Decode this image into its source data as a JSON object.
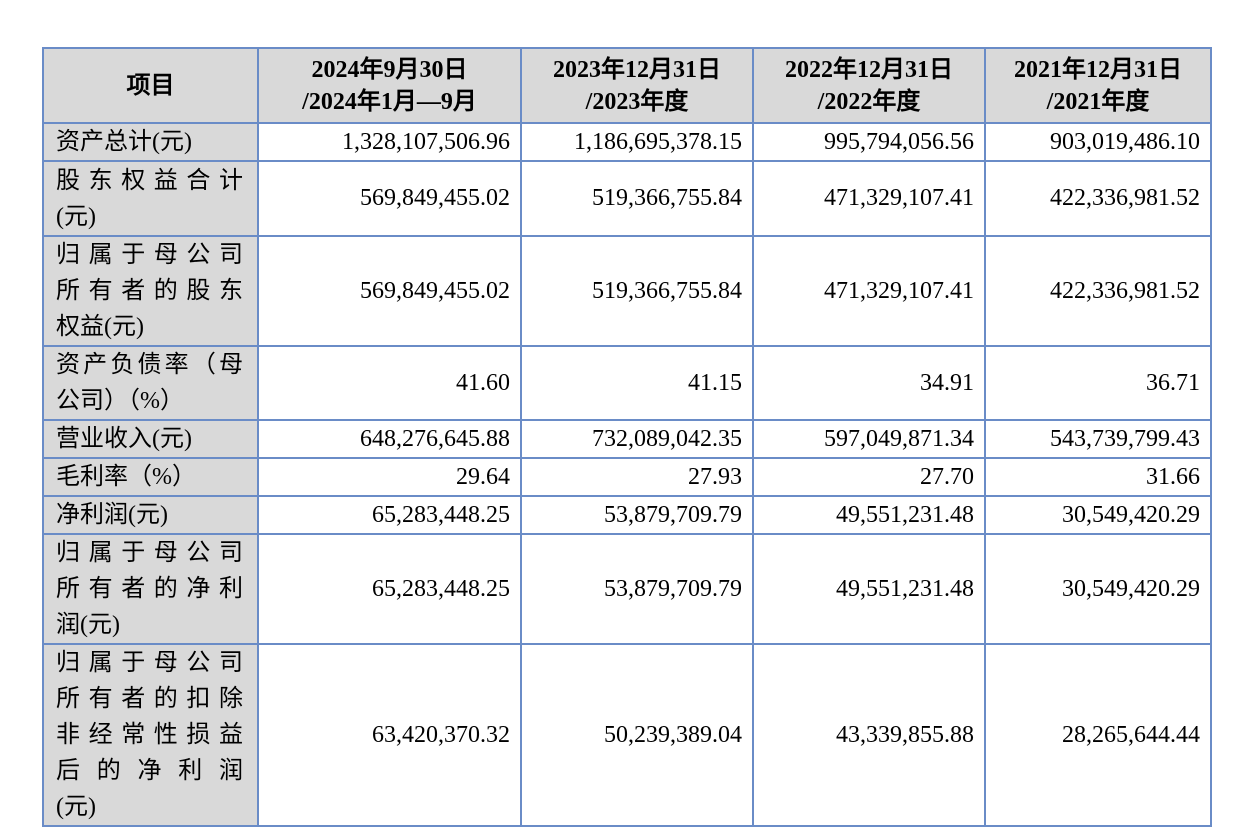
{
  "header": {
    "item": "项目",
    "columns": [
      [
        "2024年9月30日",
        "/2024年1月—9月"
      ],
      [
        "2023年12月31日",
        "/2023年度"
      ],
      [
        "2022年12月31日",
        "/2022年度"
      ],
      [
        "2021年12月31日",
        "/2021年度"
      ]
    ]
  },
  "rows": [
    {
      "label": [
        "资产总计(元)"
      ],
      "values": [
        "1,328,107,506.96",
        "1,186,695,378.15",
        "995,794,056.56",
        "903,019,486.10"
      ]
    },
    {
      "label": [
        "股东权益合计",
        "(元)"
      ],
      "values": [
        "569,849,455.02",
        "519,366,755.84",
        "471,329,107.41",
        "422,336,981.52"
      ]
    },
    {
      "label": [
        "归属于母公司",
        "所有者的股东",
        "权益(元)"
      ],
      "values": [
        "569,849,455.02",
        "519,366,755.84",
        "471,329,107.41",
        "422,336,981.52"
      ]
    },
    {
      "label": [
        "资产负债率（母",
        "公司）（%）"
      ],
      "values": [
        "41.60",
        "41.15",
        "34.91",
        "36.71"
      ]
    },
    {
      "label": [
        "营业收入(元)"
      ],
      "values": [
        "648,276,645.88",
        "732,089,042.35",
        "597,049,871.34",
        "543,739,799.43"
      ]
    },
    {
      "label": [
        "毛利率（%）"
      ],
      "values": [
        "29.64",
        "27.93",
        "27.70",
        "31.66"
      ]
    },
    {
      "label": [
        "净利润(元)"
      ],
      "values": [
        "65,283,448.25",
        "53,879,709.79",
        "49,551,231.48",
        "30,549,420.29"
      ]
    },
    {
      "label": [
        "归属于母公司",
        "所有者的净利",
        "润(元)"
      ],
      "values": [
        "65,283,448.25",
        "53,879,709.79",
        "49,551,231.48",
        "30,549,420.29"
      ]
    },
    {
      "label": [
        "归属于母公司",
        "所有者的扣除",
        "非经常性损益",
        "后的净利润",
        "(元)"
      ],
      "values": [
        "63,420,370.32",
        "50,239,389.04",
        "43,339,855.88",
        "28,265,644.44"
      ]
    }
  ]
}
